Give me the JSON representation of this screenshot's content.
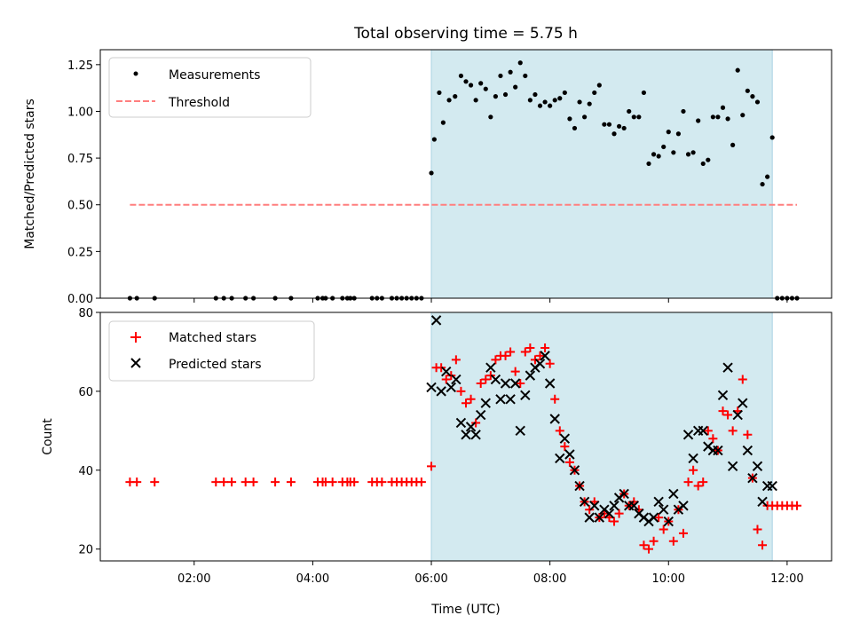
{
  "figure": {
    "title": "Total observing time = 5.75 h",
    "xlabel": "Time (UTC)"
  },
  "chart_data": [
    {
      "type": "scatter",
      "title": "Total observing time = 5.75 h",
      "xlabel": "",
      "ylabel": "Matched/Predicted stars",
      "xlim": [
        "00:25",
        "12:45"
      ],
      "ylim": [
        0,
        1.33
      ],
      "y_ticks": [
        "0.00",
        "0.25",
        "0.50",
        "0.75",
        "1.00",
        "1.25"
      ],
      "shaded_span": {
        "x": [
          "06:00",
          "11:45"
        ],
        "color": "#d3eaf0"
      },
      "legend": {
        "position": "top-left",
        "entries": [
          "Measurements",
          "Threshold"
        ]
      },
      "series": [
        {
          "name": "Measurements",
          "marker": "dot",
          "color": "#000000",
          "x": [
            "00:55",
            "01:02",
            "01:20",
            "02:22",
            "02:30",
            "02:38",
            "02:52",
            "03:00",
            "03:22",
            "03:38",
            "04:05",
            "04:10",
            "04:13",
            "04:20",
            "04:30",
            "04:35",
            "04:38",
            "04:42",
            "05:00",
            "05:05",
            "05:10",
            "05:20",
            "05:25",
            "05:30",
            "05:35",
            "05:40",
            "05:45",
            "05:50",
            "06:00",
            "06:03",
            "06:08",
            "06:12",
            "06:18",
            "06:24",
            "06:30",
            "06:35",
            "06:40",
            "06:45",
            "06:50",
            "06:55",
            "07:00",
            "07:05",
            "07:10",
            "07:15",
            "07:20",
            "07:25",
            "07:30",
            "07:35",
            "07:40",
            "07:45",
            "07:50",
            "07:55",
            "08:00",
            "08:05",
            "08:10",
            "08:15",
            "08:20",
            "08:25",
            "08:30",
            "08:35",
            "08:40",
            "08:45",
            "08:50",
            "08:55",
            "09:00",
            "09:05",
            "09:10",
            "09:15",
            "09:20",
            "09:25",
            "09:30",
            "09:35",
            "09:40",
            "09:45",
            "09:50",
            "09:55",
            "10:00",
            "10:05",
            "10:10",
            "10:15",
            "10:20",
            "10:25",
            "10:30",
            "10:35",
            "10:40",
            "10:45",
            "10:50",
            "10:55",
            "11:00",
            "11:05",
            "11:10",
            "11:15",
            "11:20",
            "11:25",
            "11:30",
            "11:35",
            "11:40",
            "11:45",
            "11:50",
            "11:55",
            "12:00",
            "12:05",
            "12:10"
          ],
          "y": [
            0,
            0,
            0,
            0,
            0,
            0,
            0,
            0,
            0,
            0,
            0,
            0,
            0,
            0,
            0,
            0,
            0,
            0,
            0,
            0,
            0,
            0,
            0,
            0,
            0,
            0,
            0,
            0,
            0.67,
            0.85,
            1.1,
            0.94,
            1.06,
            1.08,
            1.19,
            1.16,
            1.14,
            1.06,
            1.15,
            1.12,
            0.97,
            1.08,
            1.19,
            1.09,
            1.21,
            1.13,
            1.26,
            1.19,
            1.06,
            1.09,
            1.03,
            1.05,
            1.03,
            1.06,
            1.07,
            1.1,
            0.96,
            0.91,
            1.05,
            0.97,
            1.04,
            1.1,
            1.14,
            0.93,
            0.93,
            0.88,
            0.92,
            0.91,
            1.0,
            0.97,
            0.97,
            1.1,
            0.72,
            0.77,
            0.76,
            0.81,
            0.89,
            0.78,
            0.88,
            1.0,
            0.77,
            0.78,
            0.95,
            0.72,
            0.74,
            0.97,
            0.97,
            1.02,
            0.96,
            0.82,
            1.22,
            0.98,
            1.11,
            1.08,
            1.05,
            0.61,
            0.65,
            0.86,
            0,
            0,
            0,
            0,
            0
          ]
        },
        {
          "name": "Threshold",
          "marker": "dashed-line",
          "color": "#ff7f7f",
          "x": [
            "00:55",
            "12:10"
          ],
          "y": [
            0.5,
            0.5
          ]
        }
      ]
    },
    {
      "type": "scatter",
      "title": "",
      "xlabel": "Time (UTC)",
      "ylabel": "Count",
      "xlim": [
        "00:25",
        "12:45"
      ],
      "ylim": [
        17,
        80
      ],
      "y_ticks": [
        "20",
        "40",
        "60",
        "80"
      ],
      "x_ticks": [
        "02:00",
        "04:00",
        "06:00",
        "08:00",
        "10:00",
        "12:00"
      ],
      "shaded_span": {
        "x": [
          "06:00",
          "11:45"
        ],
        "color": "#d3eaf0"
      },
      "legend": {
        "position": "top-left",
        "entries": [
          "Matched stars",
          "Predicted stars"
        ]
      },
      "series": [
        {
          "name": "Matched stars",
          "marker": "plus",
          "color": "#ff0000",
          "x": [
            "00:55",
            "01:02",
            "01:20",
            "02:22",
            "02:30",
            "02:38",
            "02:52",
            "03:00",
            "03:22",
            "03:38",
            "04:05",
            "04:10",
            "04:13",
            "04:20",
            "04:30",
            "04:35",
            "04:38",
            "04:42",
            "05:00",
            "05:05",
            "05:10",
            "05:20",
            "05:25",
            "05:30",
            "05:35",
            "05:40",
            "05:45",
            "05:50",
            "06:00",
            "06:05",
            "06:10",
            "06:15",
            "06:20",
            "06:25",
            "06:30",
            "06:35",
            "06:40",
            "06:45",
            "06:50",
            "06:55",
            "07:00",
            "07:05",
            "07:10",
            "07:15",
            "07:20",
            "07:25",
            "07:30",
            "07:35",
            "07:40",
            "07:45",
            "07:50",
            "07:55",
            "08:00",
            "08:05",
            "08:10",
            "08:15",
            "08:20",
            "08:25",
            "08:30",
            "08:35",
            "08:40",
            "08:45",
            "08:50",
            "08:55",
            "09:00",
            "09:05",
            "09:10",
            "09:15",
            "09:20",
            "09:25",
            "09:30",
            "09:35",
            "09:40",
            "09:45",
            "09:50",
            "09:55",
            "10:00",
            "10:05",
            "10:10",
            "10:15",
            "10:20",
            "10:25",
            "10:30",
            "10:35",
            "10:40",
            "10:45",
            "10:50",
            "10:55",
            "11:00",
            "11:05",
            "11:10",
            "11:15",
            "11:20",
            "11:25",
            "11:30",
            "11:35",
            "11:40",
            "11:45",
            "11:50",
            "11:55",
            "12:00",
            "12:05",
            "12:10"
          ],
          "y": [
            37,
            37,
            37,
            37,
            37,
            37,
            37,
            37,
            37,
            37,
            37,
            37,
            37,
            37,
            37,
            37,
            37,
            37,
            37,
            37,
            37,
            37,
            37,
            37,
            37,
            37,
            37,
            37,
            41,
            66,
            66,
            63,
            64,
            68,
            60,
            57,
            58,
            52,
            62,
            63,
            64,
            68,
            69,
            69,
            70,
            65,
            62,
            70,
            71,
            68,
            69,
            71,
            67,
            58,
            50,
            46,
            42,
            40,
            36,
            32,
            30,
            32,
            28,
            29,
            28,
            27,
            29,
            34,
            31,
            32,
            30,
            21,
            20,
            22,
            28,
            25,
            27,
            22,
            30,
            24,
            37,
            40,
            36,
            37,
            50,
            48,
            45,
            55,
            54,
            50,
            55,
            63,
            49,
            38,
            25,
            21,
            31,
            31,
            31,
            31,
            31,
            31,
            31
          ]
        },
        {
          "name": "Predicted stars",
          "marker": "x",
          "color": "#000000",
          "x": [
            "06:00",
            "06:05",
            "06:10",
            "06:15",
            "06:20",
            "06:25",
            "06:30",
            "06:35",
            "06:40",
            "06:45",
            "06:50",
            "06:55",
            "07:00",
            "07:05",
            "07:10",
            "07:15",
            "07:20",
            "07:25",
            "07:30",
            "07:35",
            "07:40",
            "07:45",
            "07:50",
            "07:55",
            "08:00",
            "08:05",
            "08:10",
            "08:15",
            "08:20",
            "08:25",
            "08:30",
            "08:35",
            "08:40",
            "08:45",
            "08:50",
            "08:55",
            "09:00",
            "09:05",
            "09:10",
            "09:15",
            "09:20",
            "09:25",
            "09:30",
            "09:35",
            "09:40",
            "09:45",
            "09:50",
            "09:55",
            "10:00",
            "10:05",
            "10:10",
            "10:15",
            "10:20",
            "10:25",
            "10:30",
            "10:35",
            "10:40",
            "10:45",
            "10:50",
            "10:55",
            "11:00",
            "11:05",
            "11:10",
            "11:15",
            "11:20",
            "11:25",
            "11:30",
            "11:35",
            "11:40",
            "11:45"
          ],
          "y": [
            61,
            78,
            60,
            65,
            61,
            63,
            52,
            49,
            51,
            49,
            54,
            57,
            66,
            63,
            58,
            62,
            58,
            62,
            50,
            59,
            64,
            66,
            67,
            69,
            62,
            53,
            43,
            48,
            44,
            40,
            36,
            32,
            28,
            31,
            28,
            30,
            29,
            31,
            33,
            34,
            31,
            31,
            29,
            28,
            27,
            28,
            32,
            30,
            27,
            34,
            30,
            31,
            49,
            43,
            50,
            50,
            46,
            45,
            45,
            59,
            66,
            41,
            54,
            57,
            45,
            38,
            41,
            32,
            36,
            36
          ]
        }
      ]
    }
  ]
}
